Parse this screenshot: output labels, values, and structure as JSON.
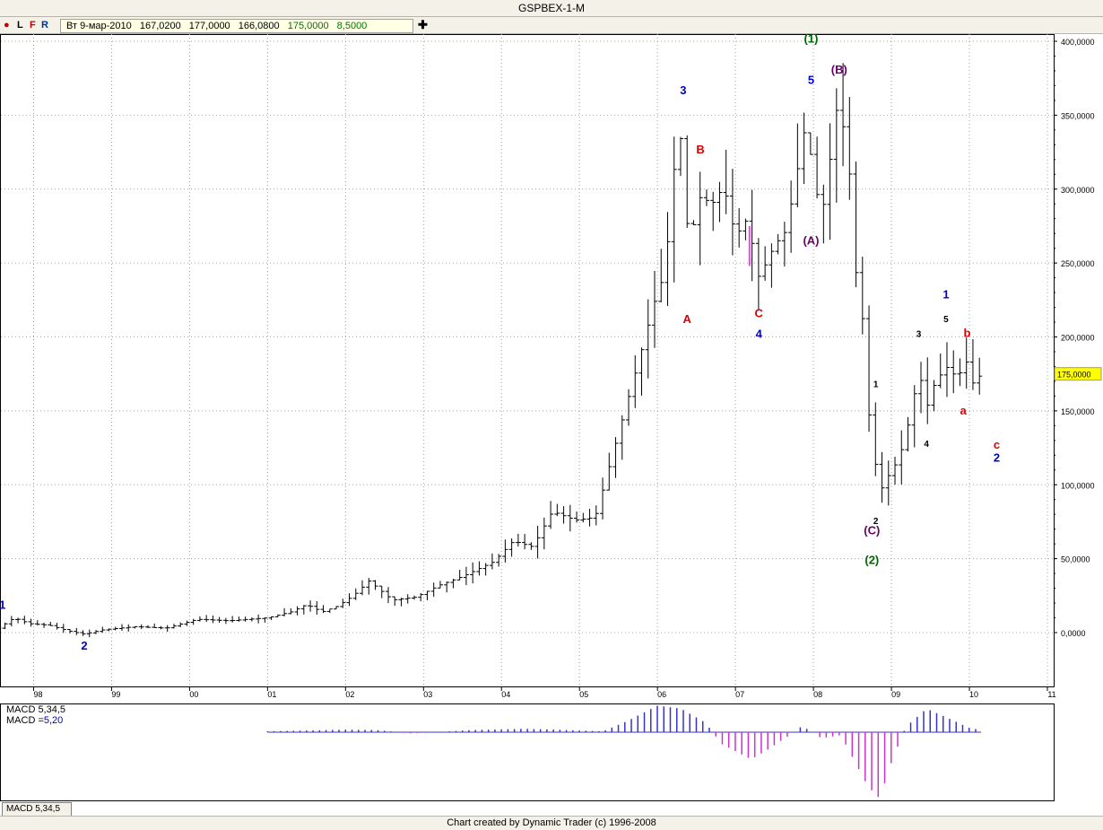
{
  "window": {
    "title": "GSPBEX-1-M"
  },
  "toolbar": {
    "dot": "●",
    "l": "L",
    "f": "F",
    "r": "R",
    "plus": "✚",
    "quote": {
      "date": "Вт 9-мар-2010",
      "open": "167,0200",
      "high": "177,0000",
      "low": "166,0800",
      "close": "175,0000",
      "change": "8,5000"
    }
  },
  "footer": {
    "text": "Chart created by Dynamic Trader  (c) 1996-2008"
  },
  "macd": {
    "name_label": "MACD 5,34,5",
    "value_label": "MACD =",
    "value": "5,20",
    "tab": "MACD 5,34,5"
  },
  "colors": {
    "bars": "#000000",
    "wave_blue": "#0000cc",
    "wave_red": "#dd0000",
    "wave_green": "#006600",
    "wave_purple": "#660066",
    "macd_pos": "#3333cc",
    "macd_neg": "#cc33cc",
    "price_marker": "#ffff00"
  },
  "chart_data": {
    "type": "ohlc",
    "title": "GSPBEX-1-M",
    "ylim": [
      -35000,
      400000
    ],
    "yticks": [
      "0,0000",
      "50,0000",
      "100,0000",
      "150,0000",
      "200,0000",
      "250,0000",
      "300,0000",
      "350,0000",
      "400,0000"
    ],
    "ytick_values": [
      0,
      50000,
      100000,
      150000,
      200000,
      250000,
      300000,
      350000,
      400000
    ],
    "xticks": [
      "98",
      "99",
      "00",
      "01",
      "02",
      "03",
      "04",
      "05",
      "06",
      "07",
      "08",
      "09",
      "10",
      "11"
    ],
    "last_price_label": "175,0000",
    "last_price": 175000,
    "price_anchors": [
      [
        1997.55,
        3000
      ],
      [
        1997.75,
        10000
      ],
      [
        1997.95,
        6000
      ],
      [
        1998.2,
        5000
      ],
      [
        1998.45,
        1000
      ],
      [
        1998.65,
        -1000
      ],
      [
        1998.9,
        2000
      ],
      [
        1999.3,
        4000
      ],
      [
        1999.7,
        3000
      ],
      [
        1999.9,
        6000
      ],
      [
        2000.1,
        9000
      ],
      [
        2000.5,
        8000
      ],
      [
        2001.0,
        10000
      ],
      [
        2001.3,
        14000
      ],
      [
        2001.5,
        19000
      ],
      [
        2001.7,
        14000
      ],
      [
        2001.9,
        18000
      ],
      [
        2002.1,
        25000
      ],
      [
        2002.3,
        35000
      ],
      [
        2002.6,
        22000
      ],
      [
        2002.9,
        24000
      ],
      [
        2003.2,
        32000
      ],
      [
        2003.5,
        38000
      ],
      [
        2003.9,
        48000
      ],
      [
        2004.15,
        62000
      ],
      [
        2004.4,
        58000
      ],
      [
        2004.65,
        82000
      ],
      [
        2004.95,
        76000
      ],
      [
        2005.2,
        78000
      ],
      [
        2005.5,
        135000
      ],
      [
        2005.8,
        192000
      ],
      [
        2005.95,
        222000
      ],
      [
        2006.1,
        245000
      ],
      [
        2006.2,
        310000
      ],
      [
        2006.3,
        335000
      ],
      [
        2006.4,
        262000
      ],
      [
        2006.55,
        295000
      ],
      [
        2006.7,
        290000
      ],
      [
        2006.85,
        302000
      ],
      [
        2007.0,
        268000
      ],
      [
        2007.15,
        280000
      ],
      [
        2007.3,
        240000
      ],
      [
        2007.5,
        262000
      ],
      [
        2007.65,
        272000
      ],
      [
        2007.8,
        315000
      ],
      [
        2007.92,
        350000
      ],
      [
        2008.0,
        300000
      ],
      [
        2008.15,
        288000
      ],
      [
        2008.28,
        355000
      ],
      [
        2008.37,
        345000
      ],
      [
        2008.45,
        320000
      ],
      [
        2008.55,
        240000
      ],
      [
        2008.65,
        205000
      ],
      [
        2008.72,
        140000
      ],
      [
        2008.85,
        95000
      ],
      [
        2008.98,
        108000
      ],
      [
        2009.1,
        118000
      ],
      [
        2009.25,
        148000
      ],
      [
        2009.35,
        178000
      ],
      [
        2009.45,
        152000
      ],
      [
        2009.55,
        168000
      ],
      [
        2009.7,
        180000
      ],
      [
        2009.85,
        172000
      ],
      [
        2009.95,
        185000
      ],
      [
        2010.05,
        168000
      ],
      [
        2010.15,
        175000
      ]
    ],
    "bar_step": 0.0833,
    "wave_labels": [
      {
        "text": "1",
        "x": 1997.6,
        "y": 10000,
        "color": "#0000cc",
        "pos": "above"
      },
      {
        "text": "2",
        "x": 1998.65,
        "y": -3000,
        "color": "#0000cc",
        "pos": "below"
      },
      {
        "text": "3",
        "x": 2006.33,
        "y": 358000,
        "color": "#0000cc",
        "pos": "above"
      },
      {
        "text": "A",
        "x": 2006.38,
        "y": 218000,
        "color": "#dd0000",
        "pos": "below"
      },
      {
        "text": "B",
        "x": 2006.55,
        "y": 318000,
        "color": "#dd0000",
        "pos": "above"
      },
      {
        "text": "C",
        "x": 2007.3,
        "y": 222000,
        "color": "#dd0000",
        "pos": "below"
      },
      {
        "text": "4",
        "x": 2007.3,
        "y": 208000,
        "color": "#0000cc",
        "pos": "below"
      },
      {
        "text": "5",
        "x": 2007.97,
        "y": 365000,
        "color": "#0000cc",
        "pos": "above"
      },
      {
        "text": "(1)",
        "x": 2007.97,
        "y": 393000,
        "color": "#006600",
        "pos": "above"
      },
      {
        "text": "(B)",
        "x": 2008.33,
        "y": 372000,
        "color": "#660066",
        "pos": "above"
      },
      {
        "text": "(A)",
        "x": 2007.97,
        "y": 271000,
        "color": "#660066",
        "pos": "below"
      },
      {
        "text": "1",
        "x": 2008.8,
        "y": 160000,
        "color": "#000000",
        "pos": "above"
      },
      {
        "text": "2",
        "x": 2008.8,
        "y": 82000,
        "color": "#000000",
        "pos": "below"
      },
      {
        "text": "(C)",
        "x": 2008.75,
        "y": 75000,
        "color": "#660066",
        "pos": "below"
      },
      {
        "text": "(2)",
        "x": 2008.75,
        "y": 55000,
        "color": "#006600",
        "pos": "below"
      },
      {
        "text": "3",
        "x": 2009.35,
        "y": 194000,
        "color": "#000000",
        "pos": "above"
      },
      {
        "text": "4",
        "x": 2009.45,
        "y": 134000,
        "color": "#000000",
        "pos": "below"
      },
      {
        "text": "5",
        "x": 2009.7,
        "y": 204000,
        "color": "#000000",
        "pos": "above"
      },
      {
        "text": "1",
        "x": 2009.7,
        "y": 220000,
        "color": "#0000cc",
        "pos": "above"
      },
      {
        "text": "b",
        "x": 2009.97,
        "y": 194000,
        "color": "#dd0000",
        "pos": "above"
      },
      {
        "text": "a",
        "x": 2009.92,
        "y": 156000,
        "color": "#dd0000",
        "pos": "below"
      },
      {
        "text": "c",
        "x": 2010.35,
        "y": 133000,
        "color": "#dd0000",
        "pos": "below"
      },
      {
        "text": "2",
        "x": 2010.35,
        "y": 124000,
        "color": "#0000cc",
        "pos": "below"
      }
    ],
    "macd_anchors": [
      [
        2001.0,
        0.2
      ],
      [
        2002.0,
        0.6
      ],
      [
        2002.4,
        0.5
      ],
      [
        2002.8,
        -0.2
      ],
      [
        2003.3,
        0.15
      ],
      [
        2003.6,
        0.5
      ],
      [
        2004.3,
        0.8
      ],
      [
        2004.7,
        0.6
      ],
      [
        2005.3,
        0.2
      ],
      [
        2005.6,
        2.5
      ],
      [
        2006.0,
        6.2
      ],
      [
        2006.3,
        5.5
      ],
      [
        2006.6,
        2.4
      ],
      [
        2006.8,
        -1.8
      ],
      [
        2007.2,
        -4.5
      ],
      [
        2007.4,
        -3.0
      ],
      [
        2007.75,
        0.0
      ],
      [
        2007.85,
        1.4
      ],
      [
        2008.1,
        -1.0
      ],
      [
        2008.35,
        -0.5
      ],
      [
        2008.7,
        -9.0
      ],
      [
        2008.85,
        -11.0
      ],
      [
        2009.0,
        -5.0
      ],
      [
        2009.2,
        1.5
      ],
      [
        2009.45,
        5.5
      ],
      [
        2009.7,
        3.5
      ],
      [
        2010.0,
        1.0
      ],
      [
        2010.15,
        0.5
      ]
    ],
    "macd_range": [
      -11.0,
      6.5
    ]
  }
}
